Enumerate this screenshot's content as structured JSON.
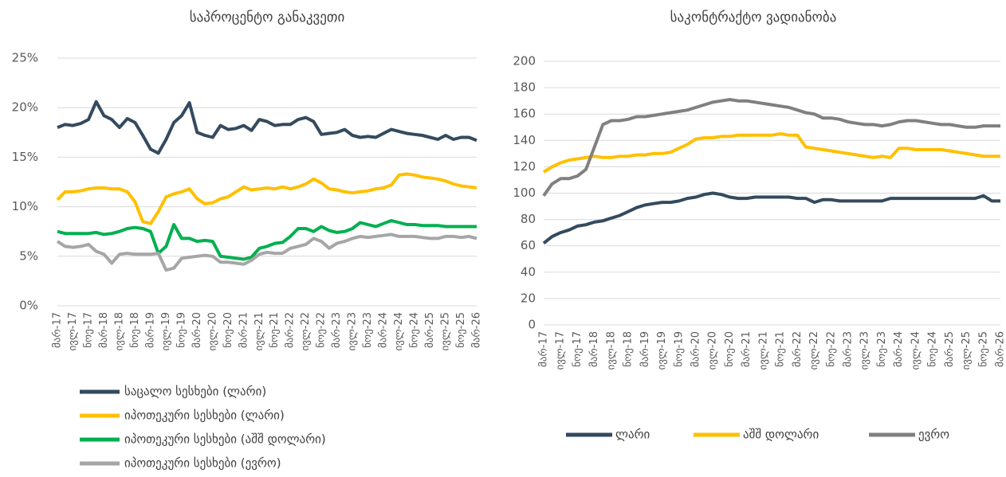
{
  "chart_data": [
    {
      "type": "line",
      "title": "საპროცენტო განაკვეთი",
      "categories": [
        "მარ-17",
        null,
        "ივლ-17",
        null,
        "ნოე-17",
        null,
        "მარ-18",
        null,
        "ივლ-18",
        null,
        "ნოე-18",
        null,
        "მარ-19",
        null,
        "ივლ-19",
        null,
        "ნოე-19",
        null,
        "მარ-20",
        null,
        "ივლ-20",
        null,
        "ნოე-20",
        null,
        "მარ-21",
        null,
        "ივლ-21",
        null,
        "ნოე-21",
        null,
        "მარ-22",
        null,
        "ივლ-22",
        null,
        "ნოე-22",
        null,
        "მარ-23",
        null,
        "ივლ-23",
        null,
        "ნოე-23",
        null,
        "მარ-24",
        null,
        "ივლ-24",
        null,
        "ნოე-24",
        null,
        "მარ-25",
        null,
        "ივლ-25",
        null,
        "ნოე-25",
        null,
        "მარ-26"
      ],
      "ylim": [
        0,
        25
      ],
      "yticks": [
        {
          "value": 0,
          "label": "0%"
        },
        {
          "value": 5,
          "label": "5%"
        },
        {
          "value": 10,
          "label": "10%"
        },
        {
          "value": 15,
          "label": "15%"
        },
        {
          "value": 20,
          "label": "20%"
        },
        {
          "value": 25,
          "label": "25%"
        }
      ],
      "grid": true,
      "legend": "bottom-vertical",
      "series": [
        {
          "name": "საცალო სესხები (ლარი)",
          "color": "#344a5e",
          "values": [
            18.0,
            18.3,
            18.2,
            18.4,
            18.8,
            20.6,
            19.2,
            18.8,
            18.0,
            18.9,
            18.5,
            17.2,
            15.8,
            15.4,
            16.8,
            18.5,
            19.2,
            20.5,
            17.5,
            17.2,
            17.0,
            18.2,
            17.8,
            17.9,
            18.2,
            17.7,
            18.8,
            18.6,
            18.2,
            18.3,
            18.3,
            18.8,
            19.0,
            18.6,
            17.3,
            17.4,
            17.5,
            17.8,
            17.2,
            17.0,
            17.1,
            17.0,
            17.4,
            17.8,
            17.6,
            17.4,
            17.3,
            17.2,
            17.0,
            16.8,
            17.2,
            16.8,
            17.0,
            17.0,
            16.7
          ]
        },
        {
          "name": "იპოთეკური სესხები (ლარი)",
          "color": "#ffc000",
          "values": [
            10.7,
            11.5,
            11.5,
            11.6,
            11.8,
            11.9,
            11.9,
            11.8,
            11.8,
            11.5,
            10.5,
            8.5,
            8.3,
            9.5,
            11.0,
            11.3,
            11.5,
            11.8,
            10.8,
            10.3,
            10.4,
            10.8,
            11.0,
            11.5,
            12.0,
            11.7,
            11.8,
            11.9,
            11.8,
            12.0,
            11.8,
            12.0,
            12.3,
            12.8,
            12.4,
            11.8,
            11.7,
            11.5,
            11.4,
            11.5,
            11.6,
            11.8,
            11.9,
            12.2,
            13.2,
            13.3,
            13.2,
            13.0,
            12.9,
            12.8,
            12.6,
            12.3,
            12.1,
            12.0,
            11.9
          ]
        },
        {
          "name": "იპოთეკური სესხები (აშშ დოლარი)",
          "color": "#00b050",
          "values": [
            7.5,
            7.3,
            7.3,
            7.3,
            7.3,
            7.4,
            7.2,
            7.3,
            7.5,
            7.8,
            7.9,
            7.8,
            7.5,
            5.3,
            6.0,
            8.2,
            6.8,
            6.8,
            6.5,
            6.6,
            6.5,
            5.0,
            4.9,
            4.8,
            4.7,
            4.9,
            5.8,
            6.0,
            6.3,
            6.4,
            7.0,
            7.8,
            7.8,
            7.5,
            8.0,
            7.6,
            7.4,
            7.5,
            7.8,
            8.4,
            8.2,
            8.0,
            8.3,
            8.6,
            8.4,
            8.2,
            8.2,
            8.1,
            8.1,
            8.1,
            8.0,
            8.0,
            8.0,
            8.0,
            8.0
          ]
        },
        {
          "name": "იპოთეკური სესხები (ევრო)",
          "color": "#a6a6a6",
          "values": [
            6.5,
            6.0,
            5.9,
            6.0,
            6.2,
            5.5,
            5.2,
            4.3,
            5.2,
            5.3,
            5.2,
            5.2,
            5.2,
            5.3,
            3.6,
            3.8,
            4.8,
            4.9,
            5.0,
            5.1,
            5.0,
            4.4,
            4.4,
            4.3,
            4.2,
            4.6,
            5.2,
            5.4,
            5.3,
            5.3,
            5.8,
            6.0,
            6.2,
            6.8,
            6.5,
            5.8,
            6.3,
            6.5,
            6.8,
            7.0,
            6.9,
            7.0,
            7.1,
            7.2,
            7.0,
            7.0,
            7.0,
            6.9,
            6.8,
            6.8,
            7.0,
            7.0,
            6.9,
            7.0,
            6.8
          ]
        }
      ]
    },
    {
      "type": "line",
      "title": "საკონტრაქტო ვადიანობა",
      "categories": [
        "მარ-17",
        null,
        "ივლ-17",
        null,
        "ნოე-17",
        null,
        "მარ-18",
        null,
        "ივლ-18",
        null,
        "ნოე-18",
        null,
        "მარ-19",
        null,
        "ივლ-19",
        null,
        "ნოე-19",
        null,
        "მარ-20",
        null,
        "ივლ-20",
        null,
        "ნოე-20",
        null,
        "მარ-21",
        null,
        "ივლ-21",
        null,
        "ნოე-21",
        null,
        "მარ-22",
        null,
        "ივლ-22",
        null,
        "ნოე-22",
        null,
        "მარ-23",
        null,
        "ივლ-23",
        null,
        "ნოე-23",
        null,
        "მარ-24",
        null,
        "ივლ-24",
        null,
        "ნოე-24",
        null,
        "მარ-25",
        null,
        "ივლ-25",
        null,
        "ნოე-25",
        null,
        "მარ-26"
      ],
      "ylim": [
        0,
        200
      ],
      "yticks": [
        0,
        20,
        40,
        60,
        80,
        100,
        120,
        140,
        160,
        180,
        200
      ],
      "grid": true,
      "legend": "bottom-horizontal",
      "series": [
        {
          "name": "ლარი",
          "color": "#344a5e",
          "values": [
            62,
            67,
            70,
            72,
            75,
            76,
            78,
            79,
            81,
            83,
            86,
            89,
            91,
            92,
            93,
            93,
            94,
            96,
            97,
            99,
            100,
            99,
            97,
            96,
            96,
            97,
            97,
            97,
            97,
            97,
            96,
            96,
            93,
            95,
            95,
            94,
            94,
            94,
            94,
            94,
            94,
            96,
            96,
            96,
            96,
            96,
            96,
            96,
            96,
            96,
            96,
            96,
            98,
            94,
            94
          ]
        },
        {
          "name": "აშშ დოლარი",
          "color": "#ffc000",
          "values": [
            116,
            120,
            123,
            125,
            126,
            127,
            128,
            127,
            127,
            128,
            128,
            129,
            129,
            130,
            130,
            131,
            134,
            137,
            141,
            142,
            142,
            143,
            143,
            144,
            144,
            144,
            144,
            144,
            145,
            144,
            144,
            135,
            134,
            133,
            132,
            131,
            130,
            129,
            128,
            127,
            128,
            127,
            134,
            134,
            133,
            133,
            133,
            133,
            132,
            131,
            130,
            129,
            128,
            128,
            128
          ]
        },
        {
          "name": "ევრო",
          "color": "#808080",
          "values": [
            98,
            107,
            111,
            111,
            113,
            118,
            135,
            152,
            155,
            155,
            156,
            158,
            158,
            159,
            160,
            161,
            162,
            163,
            165,
            167,
            169,
            170,
            171,
            170,
            170,
            169,
            168,
            167,
            166,
            165,
            163,
            161,
            160,
            157,
            157,
            156,
            154,
            153,
            152,
            152,
            151,
            152,
            154,
            155,
            155,
            154,
            153,
            152,
            152,
            151,
            150,
            150,
            151,
            151,
            151
          ]
        }
      ]
    }
  ]
}
